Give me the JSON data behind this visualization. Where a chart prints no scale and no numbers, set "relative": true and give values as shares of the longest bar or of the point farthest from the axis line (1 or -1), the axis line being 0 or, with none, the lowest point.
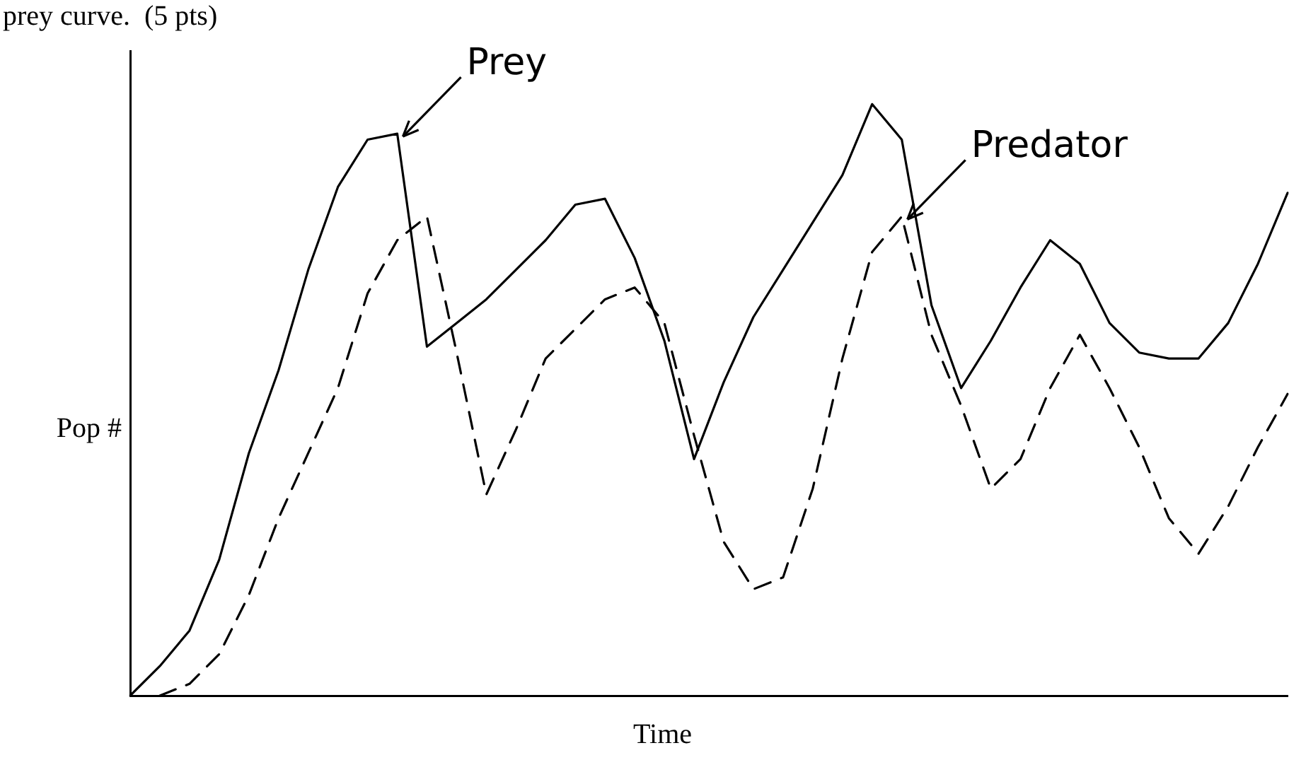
{
  "chart_data": {
    "type": "line",
    "relative": true,
    "xlabel": "Time",
    "ylabel": "Pop #",
    "annotations": [
      "prey curve.  (5 pts)"
    ],
    "legend": false,
    "marker": "none",
    "categories": [
      null,
      null,
      null,
      null,
      null,
      null,
      null,
      null,
      null,
      null,
      null,
      null,
      null,
      null,
      null,
      null,
      null,
      null,
      null,
      null,
      null,
      null,
      null,
      null,
      null,
      null,
      null,
      null,
      null,
      null,
      null,
      null,
      null,
      null,
      null,
      null,
      null,
      null,
      null,
      null
    ],
    "series": [
      {
        "name": "Prey",
        "color": "#000000",
        "line_style": "solid",
        "values": [
          0,
          0.05,
          0.11,
          0.23,
          0.41,
          0.55,
          0.72,
          0.86,
          0.94,
          0.95,
          0.59,
          0.63,
          0.67,
          0.72,
          0.77,
          0.83,
          0.84,
          0.74,
          0.6,
          0.4,
          0.53,
          0.64,
          0.72,
          0.8,
          0.88,
          1,
          0.94,
          0.66,
          0.52,
          0.6,
          0.69,
          0.77,
          0.73,
          0.63,
          0.58,
          0.57,
          0.57,
          0.63,
          0.73,
          0.85
        ]
      },
      {
        "name": "Predator",
        "color": "#000000",
        "line_style": "dashed",
        "values": [
          null,
          0,
          0.02,
          0.07,
          0.17,
          0.3,
          0.41,
          0.52,
          0.68,
          0.77,
          0.81,
          0.58,
          0.34,
          0.45,
          0.57,
          0.62,
          0.67,
          0.69,
          0.63,
          0.44,
          0.26,
          0.18,
          0.2,
          0.35,
          0.57,
          0.75,
          0.81,
          0.61,
          0.49,
          0.35,
          0.4,
          0.52,
          0.61,
          0.52,
          0.42,
          0.3,
          0.24,
          0.32,
          0.42,
          0.51
        ]
      }
    ]
  }
}
